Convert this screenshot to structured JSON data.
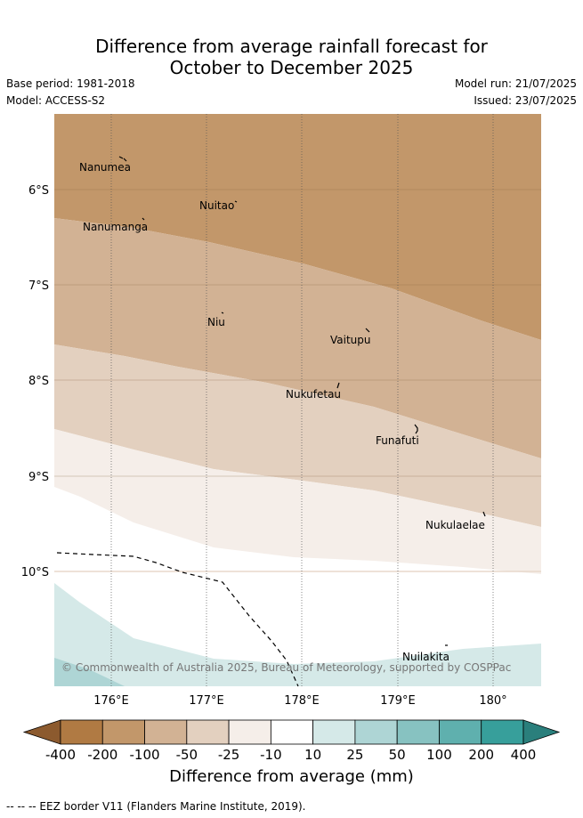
{
  "title_line1": "Difference from average rainfall forecast for",
  "title_line2": "October to December 2025",
  "base_period": "Base period: 1981-2018",
  "model": "Model: ACCESS-S2",
  "model_run": "Model run: 21/07/2025",
  "issued": "Issued: 23/07/2025",
  "copyright": "© Commonwealth of Australia 2025, Bureau of Meteorology, supported by COSPPac",
  "map": {
    "lat_labels": [
      "6°S",
      "7°S",
      "8°S",
      "9°S",
      "10°S"
    ],
    "lon_labels": [
      "176°E",
      "177°E",
      "178°E",
      "179°E",
      "180°"
    ],
    "islands": [
      "Nanumea",
      "Nuitao",
      "Nanumanga",
      "Niu",
      "Vaitupu",
      "Nukufetau",
      "Funafuti",
      "Nukulaelae",
      "Nuilakita"
    ]
  },
  "colorbar": {
    "ticks": [
      "-400",
      "-200",
      "-100",
      "-50",
      "-25",
      "-10",
      "10",
      "25",
      "50",
      "100",
      "200",
      "400"
    ],
    "colors": [
      "#8c5a2e",
      "#b07a43",
      "#c2976a",
      "#d2b294",
      "#e3d0bf",
      "#f5eee9",
      "#ffffff",
      "#d5e9e8",
      "#aed5d5",
      "#87c2c1",
      "#5fb0ae",
      "#379f9b",
      "#2a7f7c"
    ],
    "label": "Difference from average (mm)"
  },
  "footer": "-- -- -- EEZ border V11 (Flanders Marine Institute, 2019)."
}
